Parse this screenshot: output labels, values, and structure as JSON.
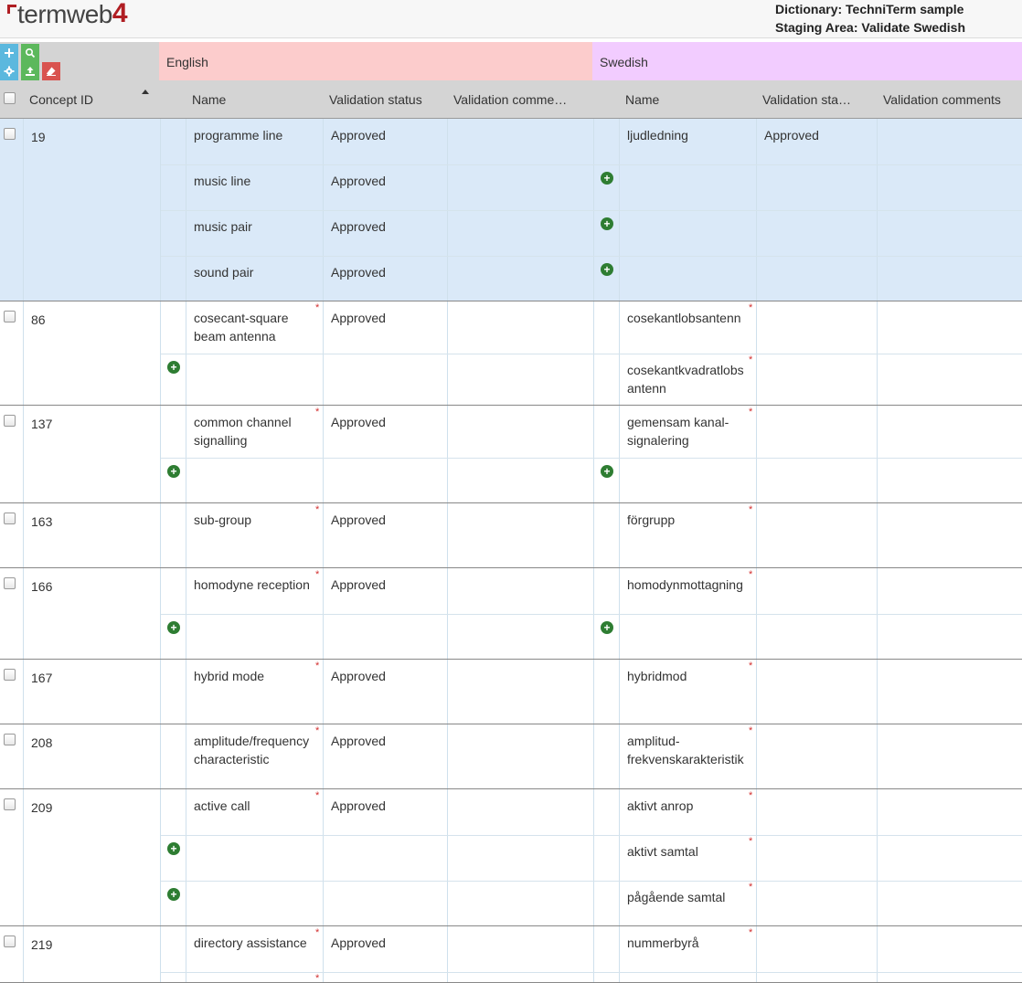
{
  "header": {
    "logo_text": "termweb",
    "logo_num": "4",
    "dictionary_line": "Dictionary: TechniTerm sample",
    "staging_line": "Staging Area: Validate Swedish"
  },
  "toolbar": {
    "add_icon": "plus-icon",
    "search_icon": "search-icon",
    "settings_icon": "gear-icon",
    "upload_icon": "upload-icon",
    "clear_icon": "eraser-icon"
  },
  "languages": {
    "english": "English",
    "swedish": "Swedish"
  },
  "columns": {
    "concept_id": "Concept ID",
    "en_name": "Name",
    "en_status": "Validation status",
    "en_comments": "Validation comme…",
    "sv_name": "Name",
    "sv_status": "Validation sta…",
    "sv_comments": "Validation comments"
  },
  "rows": [
    {
      "id": "19",
      "selected": true,
      "lines": [
        {
          "en": "programme line",
          "en_status": "Approved",
          "sv": "ljudledning",
          "sv_status": "Approved"
        },
        {
          "en": "music line",
          "en_status": "Approved",
          "sv_add": true
        },
        {
          "en": "music pair",
          "en_status": "Approved",
          "sv_add": true
        },
        {
          "en": "sound pair",
          "en_status": "Approved",
          "sv_add": true
        }
      ]
    },
    {
      "id": "86",
      "lines": [
        {
          "en": "cosecant-square beam antenna",
          "en_status": "Approved",
          "en_req": true,
          "sv": "cosekantlobsantenn",
          "sv_req": true
        },
        {
          "en_add": true,
          "sv": "cosekantkvadratlobs antenn",
          "sv_req": true
        }
      ]
    },
    {
      "id": "137",
      "lines": [
        {
          "en": "common channel signalling",
          "en_status": "Approved",
          "en_req": true,
          "sv": "gemensam kanal-signalering",
          "sv_req": true
        },
        {
          "en_add": true,
          "sv_add": true
        }
      ]
    },
    {
      "id": "163",
      "lines": [
        {
          "en": "sub-group",
          "en_status": "Approved",
          "en_req": true,
          "sv": "förgrupp",
          "sv_req": true
        }
      ]
    },
    {
      "id": "166",
      "lines": [
        {
          "en": "homodyne reception",
          "en_status": "Approved",
          "en_req": true,
          "sv": "homodynmottagning",
          "sv_req": true
        },
        {
          "en_add": true,
          "sv_add": true
        }
      ]
    },
    {
      "id": "167",
      "lines": [
        {
          "en": "hybrid mode",
          "en_status": "Approved",
          "en_req": true,
          "sv": "hybridmod",
          "sv_req": true
        }
      ]
    },
    {
      "id": "208",
      "lines": [
        {
          "en": "amplitude/frequency characteristic",
          "en_status": "Approved",
          "en_req": true,
          "sv": "amplitud-frekvenskarakteristik",
          "sv_req": true
        }
      ]
    },
    {
      "id": "209",
      "lines": [
        {
          "en": "active call",
          "en_status": "Approved",
          "en_req": true,
          "sv": "aktivt anrop",
          "sv_req": true
        },
        {
          "en_add": true,
          "sv": "aktivt samtal",
          "sv_req": true
        },
        {
          "en_add": true,
          "sv": "pågående samtal",
          "sv_req": true
        }
      ]
    },
    {
      "id": "219",
      "lines": [
        {
          "en": "directory assistance",
          "en_status": "Approved",
          "en_req": true,
          "sv": "nummerbyrå",
          "sv_req": true
        },
        {
          "en_req": true
        }
      ]
    }
  ]
}
